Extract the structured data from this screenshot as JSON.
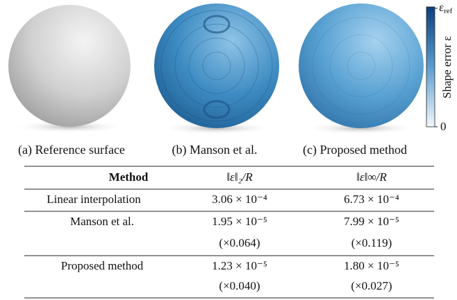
{
  "figure": {
    "colorbar": {
      "label": "Shape error ε",
      "max_symbol": "ε",
      "max_subscript": "ref",
      "min": "0"
    },
    "captions": [
      "(a) Reference surface",
      "(b) Manson et al.",
      "(c) Proposed method"
    ]
  },
  "table": {
    "header": [
      "Method",
      "‖ε‖₂/R",
      "‖ε‖∞/R"
    ],
    "rows": [
      {
        "method": "Linear interpolation",
        "l2": "3.06 × 10⁻⁴",
        "linf": "6.73 × 10⁻⁴"
      },
      {
        "method": "Manson et al.",
        "l2": "1.95 × 10⁻⁵",
        "linf": "7.99 × 10⁻⁵",
        "l2_ratio": "(×0.064)",
        "linf_ratio": "(×0.119)"
      },
      {
        "method": "Proposed method",
        "l2": "1.23 × 10⁻⁵",
        "linf": "1.80 × 10⁻⁵",
        "l2_ratio": "(×0.040)",
        "linf_ratio": "(×0.027)"
      }
    ]
  }
}
